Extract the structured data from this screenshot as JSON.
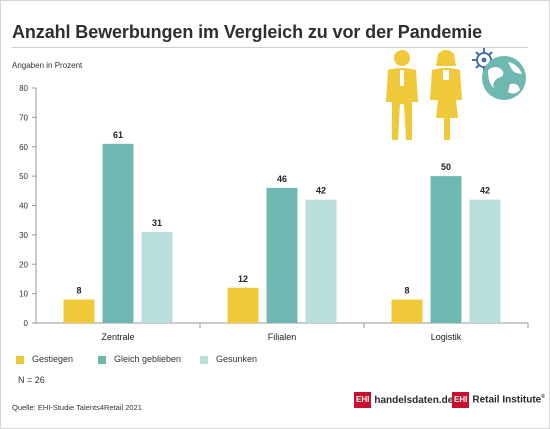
{
  "header": {
    "title": "Anzahl Bewerbungen im Vergleich zu vor der Pandemie",
    "subtitle": "Angaben in Prozent"
  },
  "chart_data": {
    "type": "bar",
    "categories": [
      "Zentrale",
      "Filialen",
      "Logistik"
    ],
    "series": [
      {
        "name": "Gestiegen",
        "values": [
          8,
          12,
          8
        ],
        "color": "#f0c93a"
      },
      {
        "name": "Gleich geblieben",
        "values": [
          61,
          46,
          50
        ],
        "color": "#6fb8b2"
      },
      {
        "name": "Gesunken",
        "values": [
          31,
          42,
          42
        ],
        "color": "#b9dfdc"
      }
    ],
    "ylim": [
      0,
      80
    ],
    "yticks": [
      0,
      10,
      20,
      30,
      40,
      50,
      60,
      70,
      80
    ],
    "xlabel": "",
    "ylabel": "",
    "grid": false,
    "legend": "bottom-left"
  },
  "footer": {
    "n_label": "N = 26",
    "source": "Quelle: EHI-Studie Talents4Retail 2021",
    "logo1_box": "EHI",
    "logo1_text": "handelsdaten.de",
    "logo2_box": "EHI",
    "logo2_text": "Retail Institute",
    "logo2_sup": "®"
  },
  "colors": {
    "axis": "#9a9a9a",
    "illustration_people": "#f0c93a",
    "illustration_globe": "#6fb8b2"
  },
  "icons": [
    "businessman-icon",
    "businesswoman-icon",
    "virus-icon",
    "globe-icon"
  ]
}
